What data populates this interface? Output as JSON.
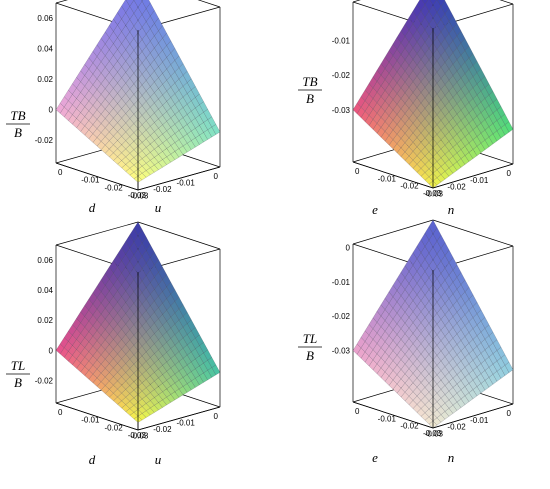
{
  "chart_data": [
    {
      "type": "surface3d",
      "title": "",
      "zlabel_num": "TB",
      "zlabel_den": "B",
      "xlabel": "d",
      "ylabel": "u",
      "x_ticks": [
        "-0.03",
        "-0.02",
        "-0.01",
        "0"
      ],
      "y_ticks": [
        "0",
        "-0.01",
        "-0.02",
        "-0.03"
      ],
      "z_ticks": [
        "0.06",
        "0.04",
        "0.02",
        "0",
        "-0.02"
      ],
      "xlim": [
        -0.035,
        0
      ],
      "ylim": [
        -0.035,
        0
      ],
      "zlim": [
        -0.035,
        0.07
      ],
      "corner_values": {
        "min_min": -0.03,
        "min_max": 0.0,
        "max_min": -0.012,
        "max_max": 0.07
      },
      "colormap": [
        "#ffff7a",
        "#f3a8d8",
        "#7ee3c6",
        "#6d74e6"
      ]
    },
    {
      "type": "surface3d",
      "title": "",
      "zlabel_num": "TB",
      "zlabel_den": "B",
      "xlabel": "e",
      "ylabel": "n",
      "x_ticks": [
        "-0.03",
        "-0.02",
        "-0.01",
        "0"
      ],
      "y_ticks": [
        "0",
        "-0.01",
        "-0.02",
        "-0.03"
      ],
      "z_ticks": [
        "-0.01",
        "-0.02",
        "-0.03"
      ],
      "xlim": [
        -0.035,
        0
      ],
      "ylim": [
        -0.035,
        0
      ],
      "zlim": [
        -0.045,
        0.001
      ],
      "corner_values": {
        "min_min": -0.045,
        "min_max": -0.03,
        "max_min": -0.035,
        "max_max": 0.001
      },
      "colormap": [
        "#f4f44a",
        "#f2557e",
        "#4fe07a",
        "#3535b8"
      ]
    },
    {
      "type": "surface3d",
      "title": "",
      "zlabel_num": "TL",
      "zlabel_den": "B",
      "xlabel": "d",
      "ylabel": "u",
      "x_ticks": [
        "-0.03",
        "-0.02",
        "-0.01",
        "0"
      ],
      "y_ticks": [
        "0",
        "-0.01",
        "-0.02",
        "-0.03"
      ],
      "z_ticks": [
        "0.06",
        "0.04",
        "0.02",
        "0",
        "-0.02"
      ],
      "xlim": [
        -0.035,
        0
      ],
      "ylim": [
        -0.035,
        0
      ],
      "zlim": [
        -0.035,
        0.07
      ],
      "corner_values": {
        "min_min": -0.03,
        "min_max": 0.0,
        "max_min": -0.012,
        "max_max": 0.07
      },
      "colormap": [
        "#f8f848",
        "#f04f8c",
        "#46c6a4",
        "#3c3ca8"
      ]
    },
    {
      "type": "surface3d",
      "title": "",
      "zlabel_num": "TL",
      "zlabel_den": "B",
      "xlabel": "e",
      "ylabel": "n",
      "x_ticks": [
        "-0.03",
        "-0.02",
        "-0.01",
        "0"
      ],
      "y_ticks": [
        "0",
        "-0.01",
        "-0.02",
        "-0.03"
      ],
      "z_ticks": [
        "0",
        "-0.01",
        "-0.02",
        "-0.03"
      ],
      "xlim": [
        -0.035,
        0
      ],
      "ylim": [
        -0.035,
        0
      ],
      "zlim": [
        -0.045,
        0.001
      ],
      "corner_values": {
        "min_min": -0.045,
        "min_max": -0.03,
        "max_min": -0.035,
        "max_max": 0.001
      },
      "colormap": [
        "#f3ead0",
        "#f0a2cc",
        "#8fcfe0",
        "#5a62cf"
      ]
    }
  ]
}
